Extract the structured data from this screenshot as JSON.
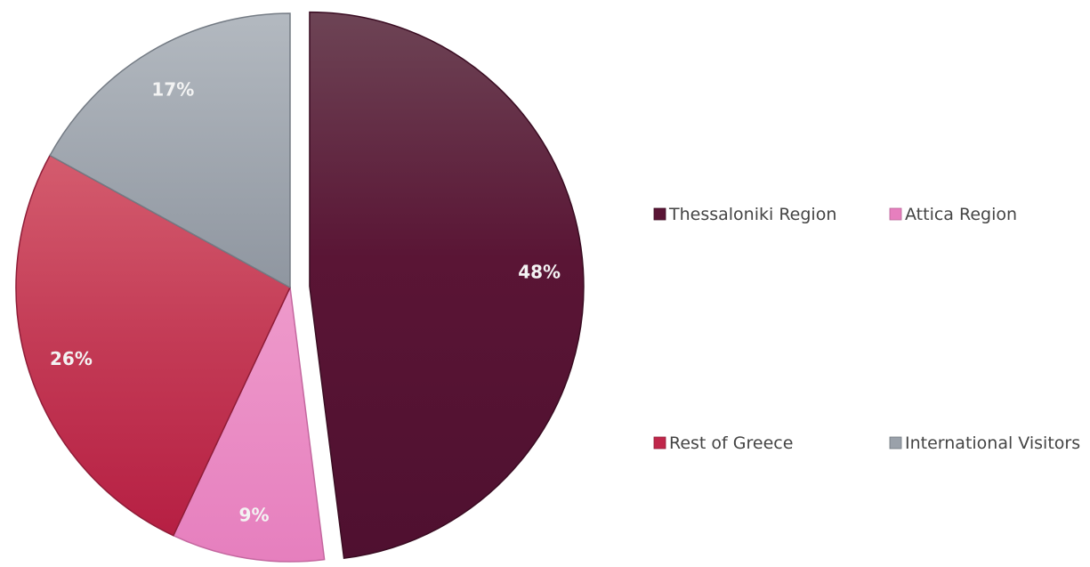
{
  "chart_data": {
    "type": "pie",
    "categories": [
      "Thessaloniki Region",
      "Attica Region",
      "Rest of Greece",
      "International Visitors"
    ],
    "values": [
      48,
      9,
      26,
      17
    ],
    "labels": [
      "48%",
      "9%",
      "26%",
      "17%"
    ],
    "exploded": [
      "Thessaloniki Region"
    ],
    "colors": [
      "#5a1535",
      "#e67fbe",
      "#c0264a",
      "#9aa1aa"
    ],
    "legend_position": "right",
    "title": ""
  }
}
